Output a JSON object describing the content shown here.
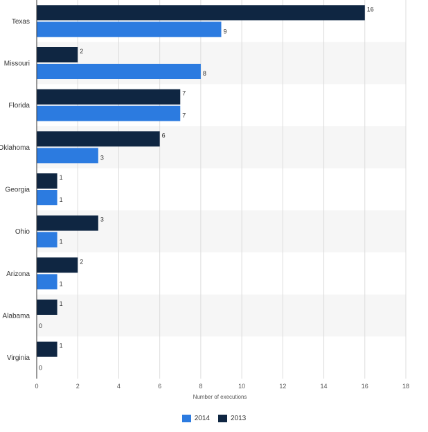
{
  "chart_data": {
    "type": "bar",
    "orientation": "horizontal",
    "categories": [
      "Texas",
      "Missouri",
      "Florida",
      "Oklahoma",
      "Georgia",
      "Ohio",
      "Arizona",
      "Alabama",
      "Virginia"
    ],
    "series": [
      {
        "name": "2013",
        "color": "#0f2642",
        "values": [
          16,
          2,
          7,
          6,
          1,
          3,
          2,
          1,
          1
        ]
      },
      {
        "name": "2014",
        "color": "#2c7be0",
        "values": [
          9,
          8,
          7,
          3,
          1,
          1,
          1,
          0,
          0
        ]
      }
    ],
    "xlabel": "Number of executions",
    "ylabel": "",
    "xlim": [
      0,
      18
    ],
    "xticks": [
      0,
      2,
      4,
      6,
      8,
      10,
      12,
      14,
      16,
      18
    ],
    "grid": true,
    "legend_position": "bottom-center",
    "legend": [
      {
        "name": "2014",
        "color": "#2c7be0"
      },
      {
        "name": "2013",
        "color": "#0f2642"
      }
    ]
  }
}
